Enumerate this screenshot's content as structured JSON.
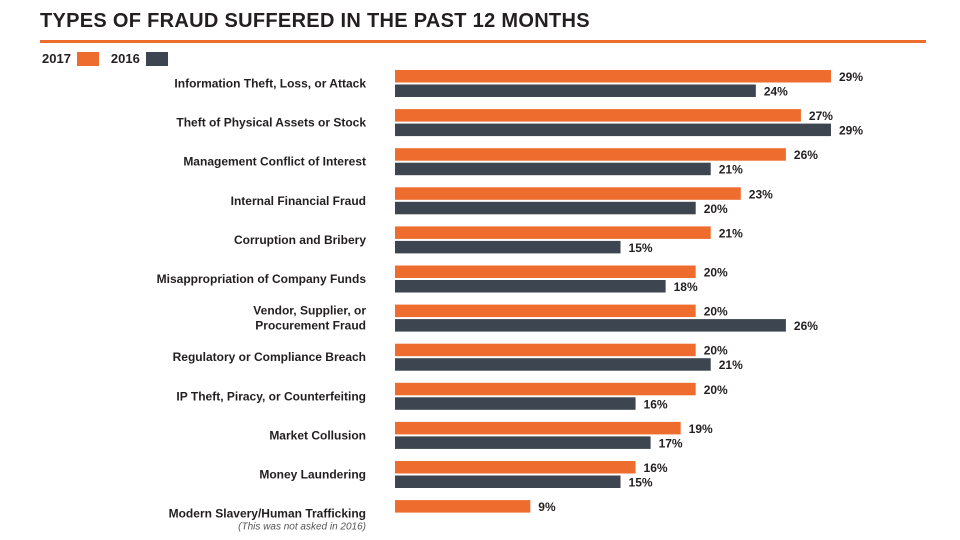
{
  "colors": {
    "accent": "#ef6c2f",
    "series_2017": "#ef6c2f",
    "series_2016": "#3d4550",
    "text": "#231f20"
  },
  "chart_data": {
    "type": "bar",
    "orientation": "horizontal",
    "title": "TYPES OF FRAUD SUFFERED IN THE PAST 12 MONTHS",
    "legend_position": "top-left",
    "grid": false,
    "xlim": [
      0,
      29
    ],
    "value_format": "percent",
    "categories": [
      {
        "lines": [
          "Information Theft, Loss, or Attack"
        ],
        "note": ""
      },
      {
        "lines": [
          "Theft of Physical Assets or Stock"
        ],
        "note": ""
      },
      {
        "lines": [
          "Management Conflict of Interest"
        ],
        "note": ""
      },
      {
        "lines": [
          "Internal Financial Fraud"
        ],
        "note": ""
      },
      {
        "lines": [
          "Corruption and Bribery"
        ],
        "note": ""
      },
      {
        "lines": [
          "Misappropriation of Company Funds"
        ],
        "note": ""
      },
      {
        "lines": [
          "Vendor, Supplier, or",
          "Procurement Fraud"
        ],
        "note": ""
      },
      {
        "lines": [
          "Regulatory or Compliance Breach"
        ],
        "note": ""
      },
      {
        "lines": [
          "IP Theft, Piracy, or Counterfeiting"
        ],
        "note": ""
      },
      {
        "lines": [
          "Market Collusion"
        ],
        "note": ""
      },
      {
        "lines": [
          "Money Laundering"
        ],
        "note": ""
      },
      {
        "lines": [
          "Modern Slavery/Human Trafficking"
        ],
        "note": "(This was not asked in 2016)"
      }
    ],
    "series": [
      {
        "name": "2017",
        "color": "#ef6c2f",
        "values": [
          29,
          27,
          26,
          23,
          21,
          20,
          20,
          20,
          20,
          19,
          16,
          9
        ]
      },
      {
        "name": "2016",
        "color": "#3d4550",
        "values": [
          24,
          29,
          21,
          20,
          15,
          18,
          26,
          21,
          16,
          17,
          15,
          null
        ]
      }
    ]
  }
}
